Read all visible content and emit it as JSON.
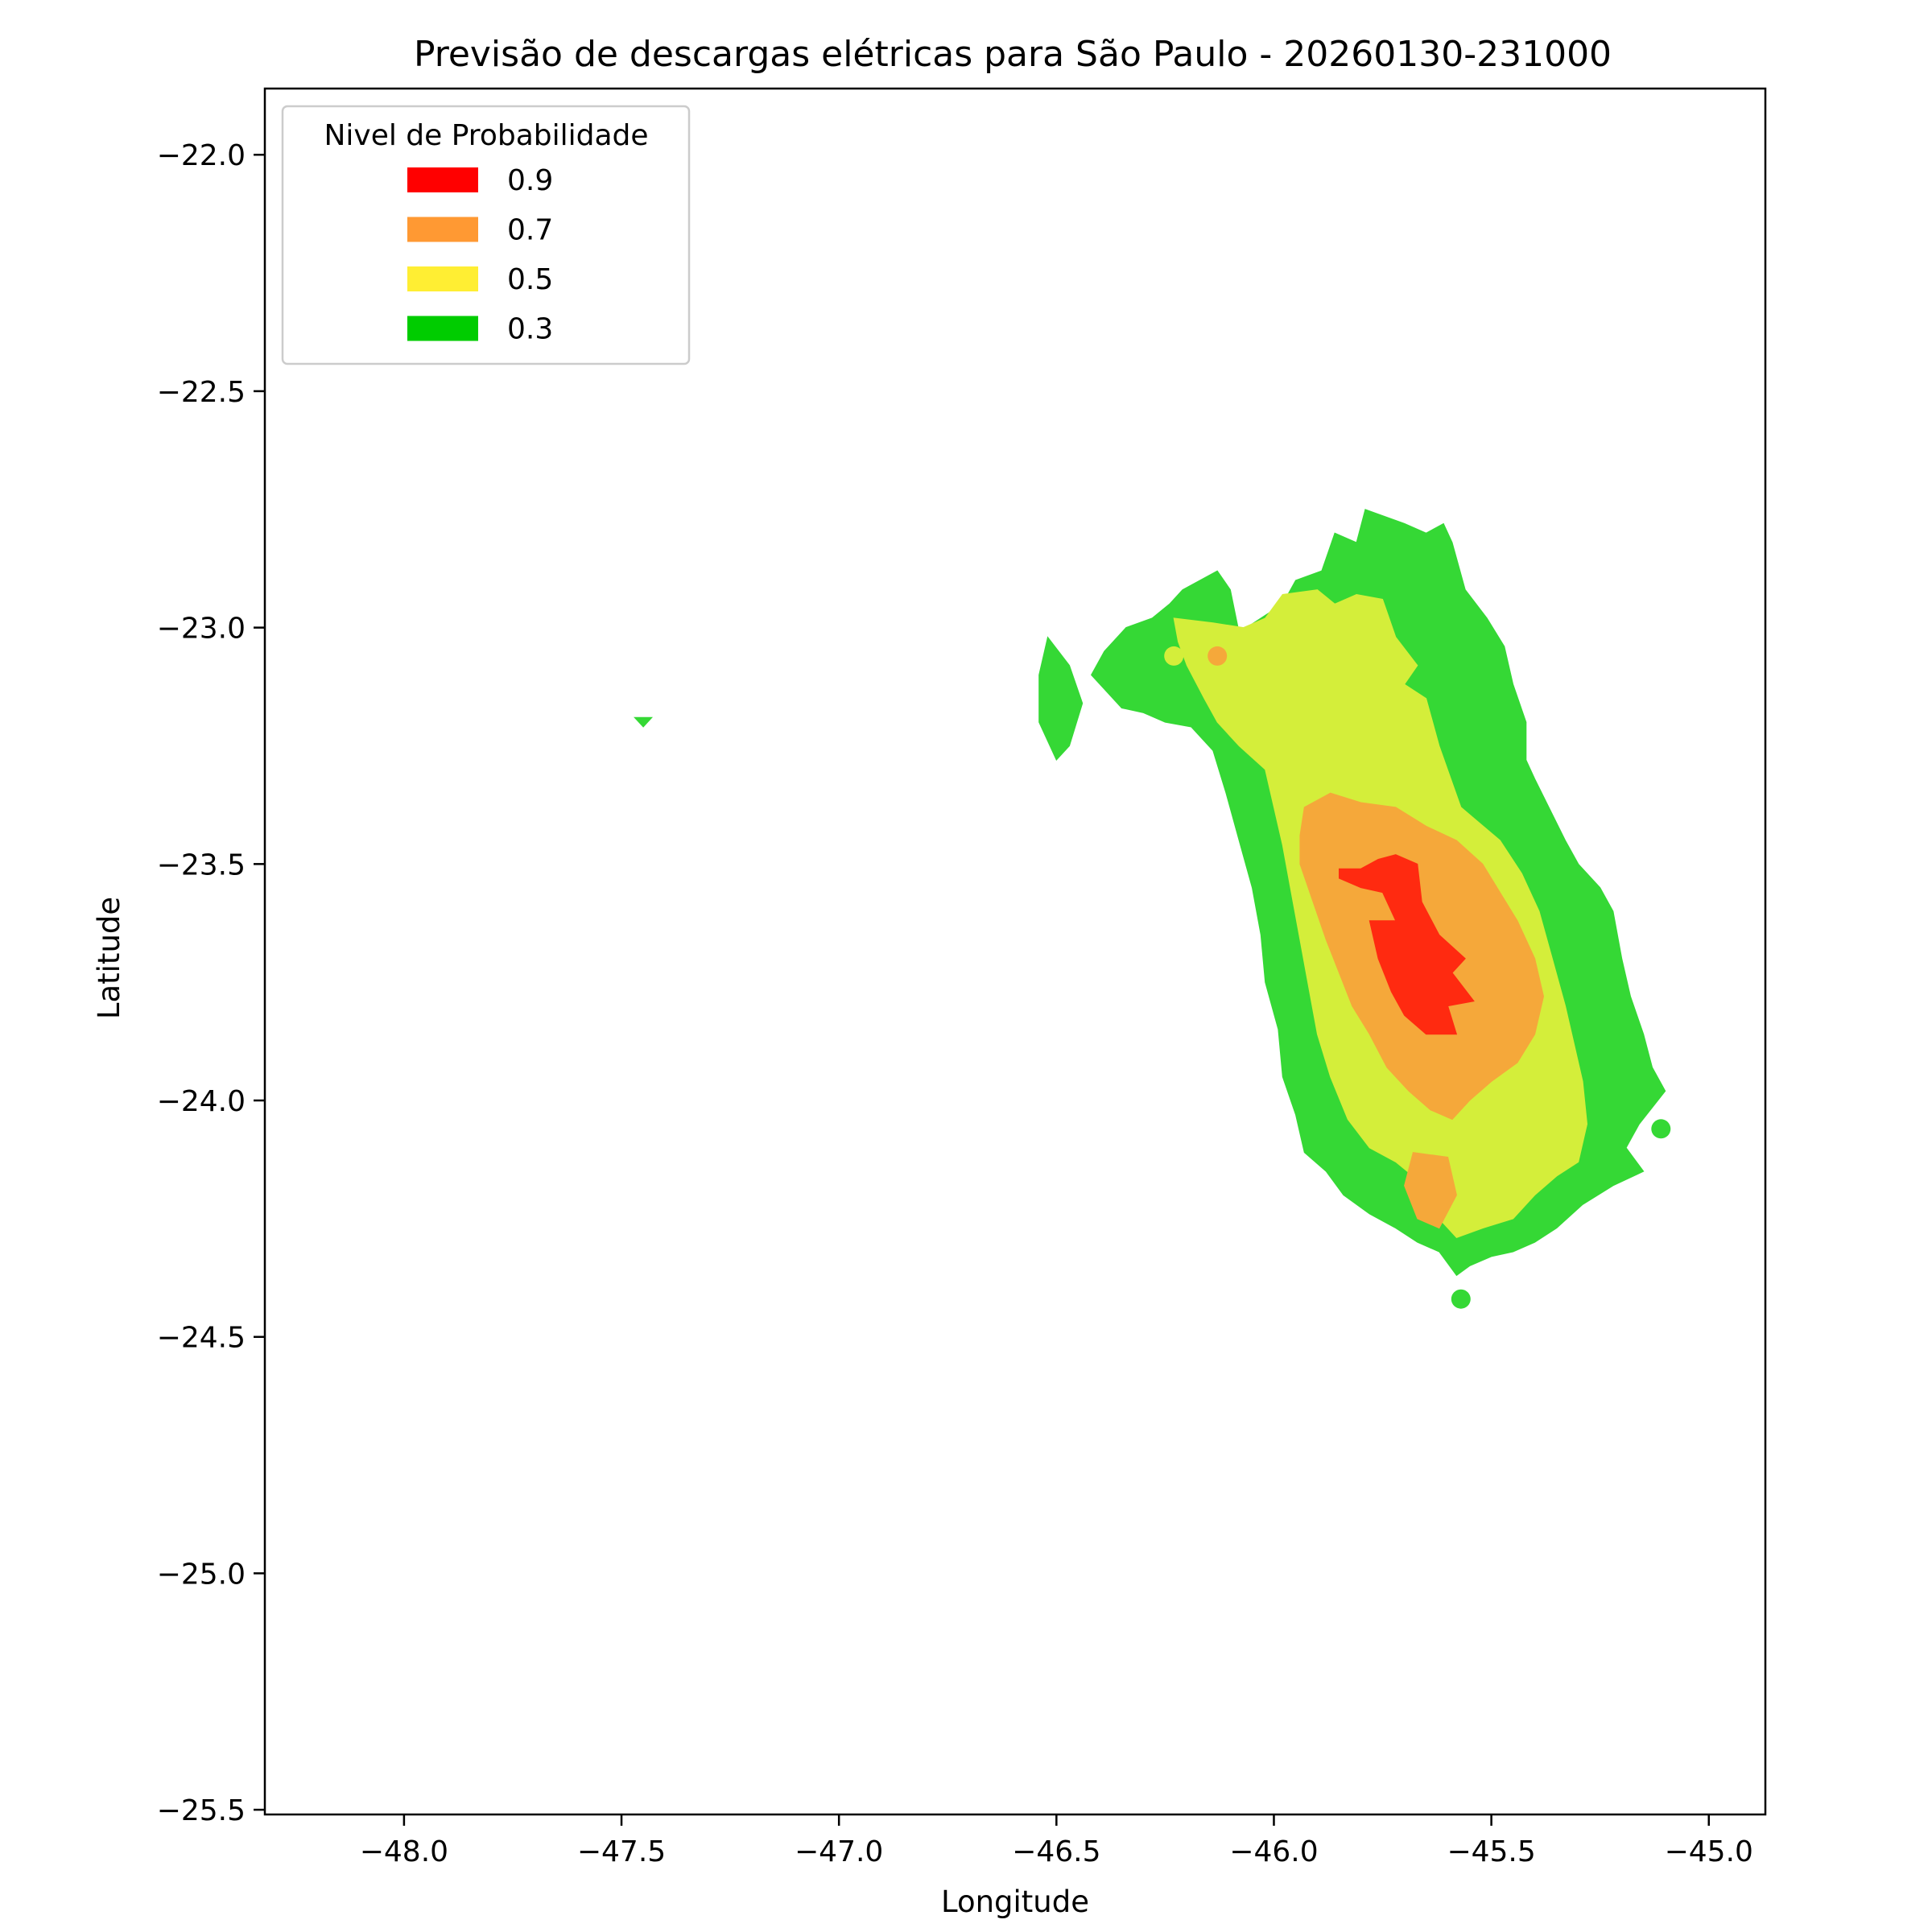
{
  "chart_data": {
    "type": "heatmap",
    "title": "Previsão de descargas elétricas para São Paulo - 20260130-231000",
    "xlabel": "Longitude",
    "ylabel": "Latitude",
    "xlim": [
      -48.32,
      -44.87
    ],
    "ylim": [
      -25.51,
      -21.86
    ],
    "xticks": [
      -48.0,
      -47.5,
      -47.0,
      -46.5,
      -46.0,
      -45.5,
      -45.0
    ],
    "xtick_labels": [
      "−48.0",
      "−47.5",
      "−47.0",
      "−46.5",
      "−46.0",
      "−45.5",
      "−45.0"
    ],
    "yticks": [
      -22.0,
      -22.5,
      -23.0,
      -23.5,
      -24.0,
      -24.5,
      -25.0,
      -25.5
    ],
    "ytick_labels": [
      "−22.0",
      "−22.5",
      "−23.0",
      "−23.5",
      "−24.0",
      "−24.5",
      "−25.0",
      "−25.5"
    ],
    "grid": false,
    "legend": {
      "title": "Nivel de Probabilidade",
      "placement": "top-left",
      "entries": [
        {
          "label": "0.9",
          "color": "#ff0000"
        },
        {
          "label": "0.7",
          "color": "#ff9933"
        },
        {
          "label": "0.5",
          "color": "#ffee33"
        },
        {
          "label": "0.3",
          "color": "#00cc00"
        }
      ]
    },
    "contour_levels": [
      {
        "level": 0.3,
        "color": "#35d835",
        "polygons": [
          [
            [
              -46.08,
              -23.01
            ],
            [
              -45.98,
              -22.95
            ],
            [
              -45.95,
              -22.9
            ],
            [
              -45.89,
              -22.88
            ],
            [
              -45.86,
              -22.8
            ],
            [
              -45.81,
              -22.82
            ],
            [
              -45.79,
              -22.75
            ],
            [
              -45.7,
              -22.78
            ],
            [
              -45.65,
              -22.8
            ],
            [
              -45.61,
              -22.78
            ],
            [
              -45.59,
              -22.82
            ],
            [
              -45.56,
              -22.92
            ],
            [
              -45.51,
              -22.98
            ],
            [
              -45.47,
              -23.04
            ],
            [
              -45.45,
              -23.12
            ],
            [
              -45.42,
              -23.2
            ],
            [
              -45.42,
              -23.28
            ],
            [
              -45.4,
              -23.32
            ],
            [
              -45.33,
              -23.45
            ],
            [
              -45.3,
              -23.5
            ],
            [
              -45.25,
              -23.55
            ],
            [
              -45.22,
              -23.6
            ],
            [
              -45.2,
              -23.7
            ],
            [
              -45.18,
              -23.78
            ],
            [
              -45.15,
              -23.86
            ],
            [
              -45.13,
              -23.93
            ],
            [
              -45.1,
              -23.98
            ],
            [
              -45.16,
              -24.05
            ],
            [
              -45.19,
              -24.1
            ],
            [
              -45.15,
              -24.15
            ],
            [
              -45.22,
              -24.18
            ],
            [
              -45.29,
              -24.22
            ],
            [
              -45.35,
              -24.27
            ],
            [
              -45.4,
              -24.3
            ],
            [
              -45.45,
              -24.32
            ],
            [
              -45.5,
              -24.33
            ],
            [
              -45.55,
              -24.35
            ],
            [
              -45.58,
              -24.37
            ],
            [
              -45.62,
              -24.32
            ],
            [
              -45.67,
              -24.3
            ],
            [
              -45.72,
              -24.27
            ],
            [
              -45.78,
              -24.24
            ],
            [
              -45.84,
              -24.2
            ],
            [
              -45.88,
              -24.15
            ],
            [
              -45.93,
              -24.11
            ],
            [
              -45.95,
              -24.03
            ],
            [
              -45.98,
              -23.95
            ],
            [
              -45.99,
              -23.85
            ],
            [
              -46.02,
              -23.75
            ],
            [
              -46.03,
              -23.65
            ],
            [
              -46.05,
              -23.55
            ],
            [
              -46.08,
              -23.45
            ],
            [
              -46.11,
              -23.35
            ],
            [
              -46.14,
              -23.26
            ],
            [
              -46.19,
              -23.21
            ],
            [
              -46.25,
              -23.2
            ],
            [
              -46.3,
              -23.18
            ],
            [
              -46.35,
              -23.17
            ],
            [
              -46.38,
              -23.14
            ],
            [
              -46.42,
              -23.1
            ],
            [
              -46.39,
              -23.05
            ],
            [
              -46.34,
              -23.0
            ],
            [
              -46.28,
              -22.98
            ],
            [
              -46.24,
              -22.95
            ],
            [
              -46.21,
              -22.92
            ],
            [
              -46.13,
              -22.88
            ],
            [
              -46.1,
              -22.92
            ]
          ],
          [
            [
              -46.52,
              -23.02
            ],
            [
              -46.47,
              -23.08
            ],
            [
              -46.44,
              -23.16
            ],
            [
              -46.47,
              -23.25
            ],
            [
              -46.5,
              -23.28
            ],
            [
              -46.54,
              -23.2
            ],
            [
              -46.54,
              -23.1
            ]
          ],
          [
            [
              -47.47,
              -23.19
            ],
            [
              -47.43,
              -23.19
            ],
            [
              -47.45,
              -23.21
            ]
          ]
        ],
        "points": [
          [
            -45.11,
            -24.06
          ],
          [
            -45.57,
            -24.42
          ]
        ]
      },
      {
        "level": 0.5,
        "color": "#d4ee3a",
        "polygons": [
          [
            [
              -46.23,
              -22.98
            ],
            [
              -46.14,
              -22.99
            ],
            [
              -46.07,
              -23.0
            ],
            [
              -46.02,
              -22.98
            ],
            [
              -45.98,
              -22.93
            ],
            [
              -45.9,
              -22.92
            ],
            [
              -45.86,
              -22.95
            ],
            [
              -45.81,
              -22.93
            ],
            [
              -45.75,
              -22.94
            ],
            [
              -45.72,
              -23.02
            ],
            [
              -45.67,
              -23.08
            ],
            [
              -45.7,
              -23.12
            ],
            [
              -45.65,
              -23.15
            ],
            [
              -45.62,
              -23.25
            ],
            [
              -45.57,
              -23.38
            ],
            [
              -45.48,
              -23.45
            ],
            [
              -45.43,
              -23.52
            ],
            [
              -45.39,
              -23.6
            ],
            [
              -45.36,
              -23.7
            ],
            [
              -45.33,
              -23.8
            ],
            [
              -45.31,
              -23.88
            ],
            [
              -45.29,
              -23.96
            ],
            [
              -45.28,
              -24.05
            ],
            [
              -45.3,
              -24.13
            ],
            [
              -45.35,
              -24.16
            ],
            [
              -45.4,
              -24.2
            ],
            [
              -45.45,
              -24.25
            ],
            [
              -45.52,
              -24.27
            ],
            [
              -45.58,
              -24.29
            ],
            [
              -45.62,
              -24.25
            ],
            [
              -45.65,
              -24.2
            ],
            [
              -45.68,
              -24.16
            ],
            [
              -45.72,
              -24.13
            ],
            [
              -45.78,
              -24.1
            ],
            [
              -45.83,
              -24.04
            ],
            [
              -45.87,
              -23.95
            ],
            [
              -45.9,
              -23.86
            ],
            [
              -45.92,
              -23.76
            ],
            [
              -45.94,
              -23.66
            ],
            [
              -45.96,
              -23.56
            ],
            [
              -45.98,
              -23.46
            ],
            [
              -46.0,
              -23.38
            ],
            [
              -46.02,
              -23.3
            ],
            [
              -46.08,
              -23.25
            ],
            [
              -46.13,
              -23.2
            ],
            [
              -46.16,
              -23.15
            ],
            [
              -46.2,
              -23.08
            ],
            [
              -46.22,
              -23.03
            ]
          ]
        ],
        "points": [
          [
            -46.23,
            -23.06
          ]
        ]
      },
      {
        "level": 0.7,
        "color": "#f5a83a",
        "polygons": [
          [
            [
              -45.93,
              -23.38
            ],
            [
              -45.87,
              -23.35
            ],
            [
              -45.8,
              -23.37
            ],
            [
              -45.72,
              -23.38
            ],
            [
              -45.65,
              -23.42
            ],
            [
              -45.58,
              -23.45
            ],
            [
              -45.52,
              -23.5
            ],
            [
              -45.48,
              -23.56
            ],
            [
              -45.44,
              -23.62
            ],
            [
              -45.4,
              -23.7
            ],
            [
              -45.38,
              -23.78
            ],
            [
              -45.4,
              -23.86
            ],
            [
              -45.44,
              -23.92
            ],
            [
              -45.5,
              -23.96
            ],
            [
              -45.55,
              -24.0
            ],
            [
              -45.59,
              -24.04
            ],
            [
              -45.64,
              -24.02
            ],
            [
              -45.69,
              -23.98
            ],
            [
              -45.74,
              -23.93
            ],
            [
              -45.78,
              -23.86
            ],
            [
              -45.82,
              -23.8
            ],
            [
              -45.85,
              -23.73
            ],
            [
              -45.88,
              -23.66
            ],
            [
              -45.91,
              -23.58
            ],
            [
              -45.94,
              -23.5
            ],
            [
              -45.94,
              -23.44
            ]
          ],
          [
            [
              -45.68,
              -24.11
            ],
            [
              -45.6,
              -24.12
            ],
            [
              -45.58,
              -24.2
            ],
            [
              -45.62,
              -24.27
            ],
            [
              -45.67,
              -24.25
            ],
            [
              -45.7,
              -24.18
            ]
          ]
        ],
        "points": [
          [
            -46.13,
            -23.06
          ]
        ]
      },
      {
        "level": 0.9,
        "color": "#ff2a10",
        "polygons": [
          [
            [
              -45.85,
              -23.53
            ],
            [
              -45.8,
              -23.55
            ],
            [
              -45.75,
              -23.56
            ],
            [
              -45.72,
              -23.62
            ],
            [
              -45.78,
              -23.62
            ],
            [
              -45.76,
              -23.7
            ],
            [
              -45.73,
              -23.77
            ],
            [
              -45.7,
              -23.82
            ],
            [
              -45.65,
              -23.86
            ],
            [
              -45.58,
              -23.86
            ],
            [
              -45.6,
              -23.8
            ],
            [
              -45.54,
              -23.79
            ],
            [
              -45.59,
              -23.73
            ],
            [
              -45.56,
              -23.7
            ],
            [
              -45.62,
              -23.65
            ],
            [
              -45.66,
              -23.58
            ],
            [
              -45.67,
              -23.5
            ],
            [
              -45.72,
              -23.48
            ],
            [
              -45.76,
              -23.49
            ],
            [
              -45.8,
              -23.51
            ],
            [
              -45.85,
              -23.51
            ]
          ]
        ],
        "points": []
      }
    ]
  }
}
